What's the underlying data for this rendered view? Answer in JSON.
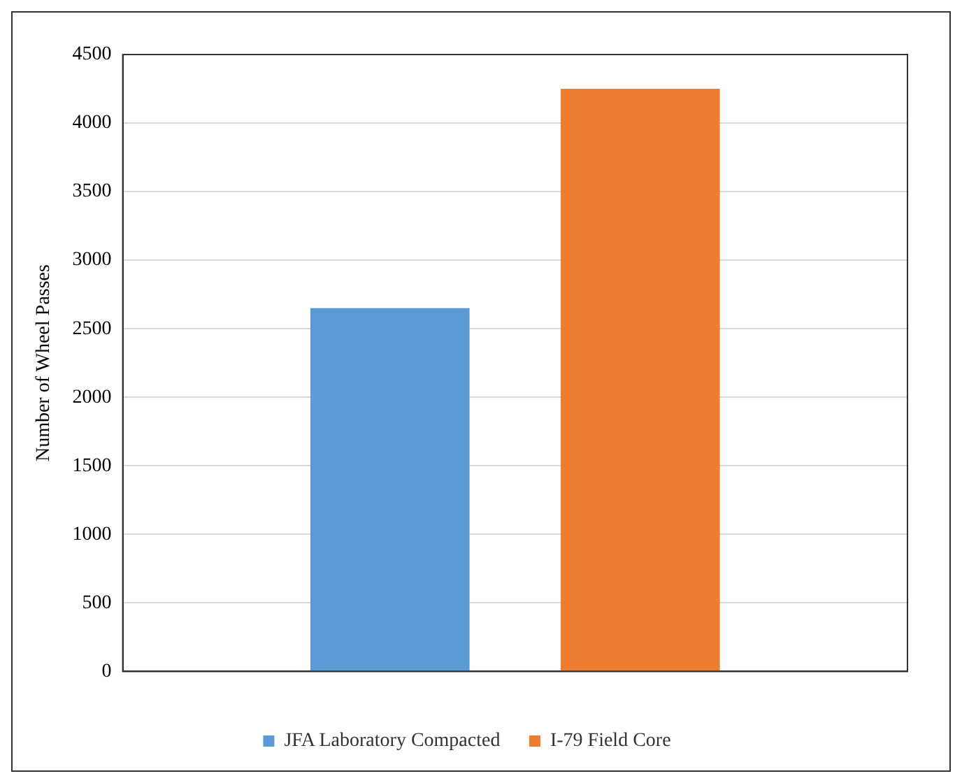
{
  "chart_data": {
    "type": "bar",
    "ylabel": "Number of Wheel Passes",
    "categories": [
      null
    ],
    "series": [
      {
        "name": "JFA Laboratory Compacted",
        "color": "#5b9bd5",
        "values": [
          2650
        ]
      },
      {
        "name": "I-79 Field Core",
        "color": "#ed7d31",
        "values": [
          4250
        ]
      }
    ],
    "ylim": [
      0,
      4500
    ],
    "yticks": [
      0,
      500,
      1000,
      1500,
      2000,
      2500,
      3000,
      3500,
      4000,
      4500
    ],
    "grid": "y",
    "legend": "bottom"
  }
}
